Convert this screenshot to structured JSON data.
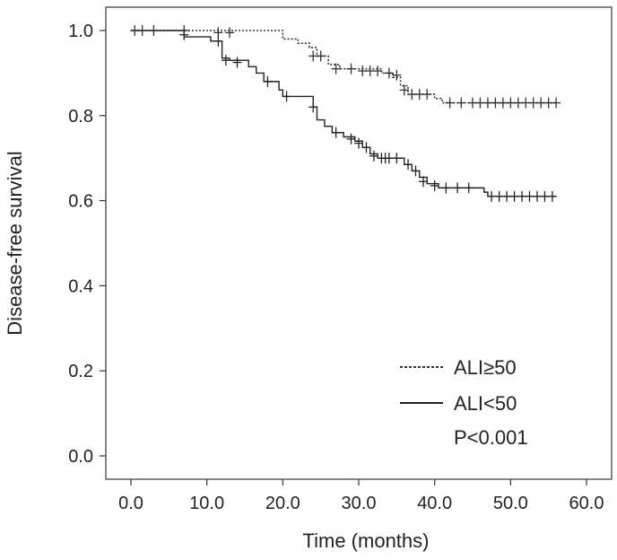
{
  "chart_data": {
    "type": "line",
    "subtype": "kaplan-meier",
    "title": "",
    "xlabel": "Time (months)",
    "ylabel": "Disease-free survival",
    "xlim": [
      0,
      60
    ],
    "ylim": [
      0,
      1.0
    ],
    "x_ticks": [
      "0.0",
      "10.0",
      "20.0",
      "30.0",
      "40.0",
      "50.0",
      "60.0"
    ],
    "y_ticks": [
      "0.0",
      "0.2",
      "0.4",
      "0.6",
      "0.8",
      "1.0"
    ],
    "grid": false,
    "legend_position": "bottom-right",
    "annotation": "P<0.001",
    "series": [
      {
        "name": "ALI≥50",
        "line_style": "dotted",
        "color": "#333333",
        "steps": [
          [
            0,
            1.0
          ],
          [
            20.0,
            0.98
          ],
          [
            22.0,
            0.97
          ],
          [
            23.5,
            0.96
          ],
          [
            24.5,
            0.94
          ],
          [
            26.0,
            0.92
          ],
          [
            27.5,
            0.91
          ],
          [
            33.0,
            0.9
          ],
          [
            34.5,
            0.89
          ],
          [
            35.5,
            0.87
          ],
          [
            36.5,
            0.85
          ],
          [
            40.0,
            0.84
          ],
          [
            41.0,
            0.83
          ],
          [
            56.0,
            0.83
          ]
        ],
        "censored": [
          [
            0.5,
            1.0
          ],
          [
            1.5,
            1.0
          ],
          [
            3.0,
            1.0
          ],
          [
            7.0,
            1.0
          ],
          [
            11.5,
            0.995
          ],
          [
            13.0,
            0.995
          ],
          [
            24.0,
            0.94
          ],
          [
            25.0,
            0.94
          ],
          [
            27.0,
            0.91
          ],
          [
            29.0,
            0.91
          ],
          [
            30.5,
            0.905
          ],
          [
            31.5,
            0.905
          ],
          [
            32.5,
            0.905
          ],
          [
            34.0,
            0.9
          ],
          [
            35.0,
            0.895
          ],
          [
            36.0,
            0.86
          ],
          [
            37.0,
            0.85
          ],
          [
            38.0,
            0.85
          ],
          [
            39.0,
            0.85
          ],
          [
            42.0,
            0.83
          ],
          [
            43.5,
            0.83
          ],
          [
            45.0,
            0.83
          ],
          [
            46.0,
            0.83
          ],
          [
            47.0,
            0.83
          ],
          [
            48.0,
            0.83
          ],
          [
            49.0,
            0.83
          ],
          [
            50.0,
            0.83
          ],
          [
            51.0,
            0.83
          ],
          [
            52.0,
            0.83
          ],
          [
            53.0,
            0.83
          ],
          [
            54.0,
            0.83
          ],
          [
            55.0,
            0.83
          ],
          [
            56.0,
            0.83
          ]
        ]
      },
      {
        "name": "ALI<50",
        "line_style": "solid",
        "color": "#222222",
        "steps": [
          [
            0,
            1.0
          ],
          [
            7.0,
            0.985
          ],
          [
            10.5,
            0.975
          ],
          [
            12.0,
            0.935
          ],
          [
            13.0,
            0.93
          ],
          [
            15.5,
            0.915
          ],
          [
            16.5,
            0.9
          ],
          [
            17.5,
            0.88
          ],
          [
            19.5,
            0.86
          ],
          [
            20.0,
            0.845
          ],
          [
            24.0,
            0.82
          ],
          [
            24.5,
            0.79
          ],
          [
            25.5,
            0.775
          ],
          [
            26.5,
            0.76
          ],
          [
            28.0,
            0.75
          ],
          [
            29.5,
            0.74
          ],
          [
            30.5,
            0.725
          ],
          [
            31.5,
            0.71
          ],
          [
            32.5,
            0.7
          ],
          [
            36.0,
            0.685
          ],
          [
            37.0,
            0.67
          ],
          [
            38.0,
            0.655
          ],
          [
            39.0,
            0.64
          ],
          [
            40.5,
            0.63
          ],
          [
            46.5,
            0.62
          ],
          [
            47.0,
            0.61
          ],
          [
            56.0,
            0.61
          ]
        ],
        "censored": [
          [
            7.0,
            0.99
          ],
          [
            11.5,
            0.975
          ],
          [
            12.5,
            0.93
          ],
          [
            14.0,
            0.925
          ],
          [
            18.0,
            0.88
          ],
          [
            20.5,
            0.845
          ],
          [
            24.0,
            0.82
          ],
          [
            27.0,
            0.76
          ],
          [
            29.0,
            0.745
          ],
          [
            30.0,
            0.735
          ],
          [
            31.0,
            0.725
          ],
          [
            32.0,
            0.705
          ],
          [
            33.0,
            0.7
          ],
          [
            33.5,
            0.7
          ],
          [
            34.0,
            0.7
          ],
          [
            35.0,
            0.7
          ],
          [
            36.5,
            0.685
          ],
          [
            37.5,
            0.67
          ],
          [
            38.5,
            0.645
          ],
          [
            40.0,
            0.635
          ],
          [
            41.5,
            0.63
          ],
          [
            43.0,
            0.63
          ],
          [
            44.5,
            0.63
          ],
          [
            47.5,
            0.61
          ],
          [
            48.5,
            0.61
          ],
          [
            49.5,
            0.61
          ],
          [
            50.5,
            0.61
          ],
          [
            51.5,
            0.61
          ],
          [
            52.5,
            0.61
          ],
          [
            53.5,
            0.61
          ],
          [
            54.5,
            0.61
          ],
          [
            55.5,
            0.61
          ]
        ]
      }
    ]
  }
}
